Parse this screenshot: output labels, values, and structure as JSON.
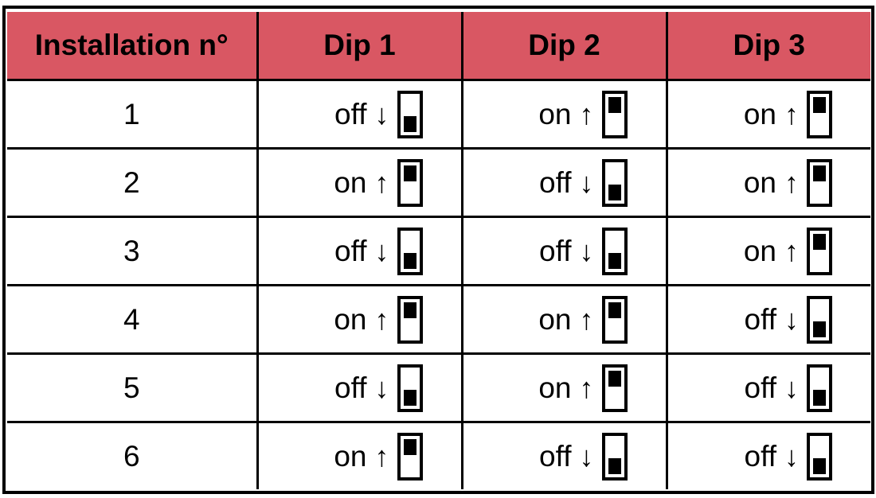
{
  "table": {
    "headers": [
      "Installation n°",
      "Dip 1",
      "Dip 2",
      "Dip 3"
    ],
    "rows": [
      {
        "installation": "1",
        "dips": [
          "off",
          "on",
          "on"
        ]
      },
      {
        "installation": "2",
        "dips": [
          "on",
          "off",
          "on"
        ]
      },
      {
        "installation": "3",
        "dips": [
          "off",
          "off",
          "on"
        ]
      },
      {
        "installation": "4",
        "dips": [
          "on",
          "on",
          "off"
        ]
      },
      {
        "installation": "5",
        "dips": [
          "off",
          "on",
          "off"
        ]
      },
      {
        "installation": "6",
        "dips": [
          "on",
          "off",
          "off"
        ]
      }
    ],
    "header_color": "#D95763",
    "icons": {
      "on": "arrow-up-icon + switch-up-icon",
      "off": "arrow-down-icon + switch-down-icon"
    }
  }
}
